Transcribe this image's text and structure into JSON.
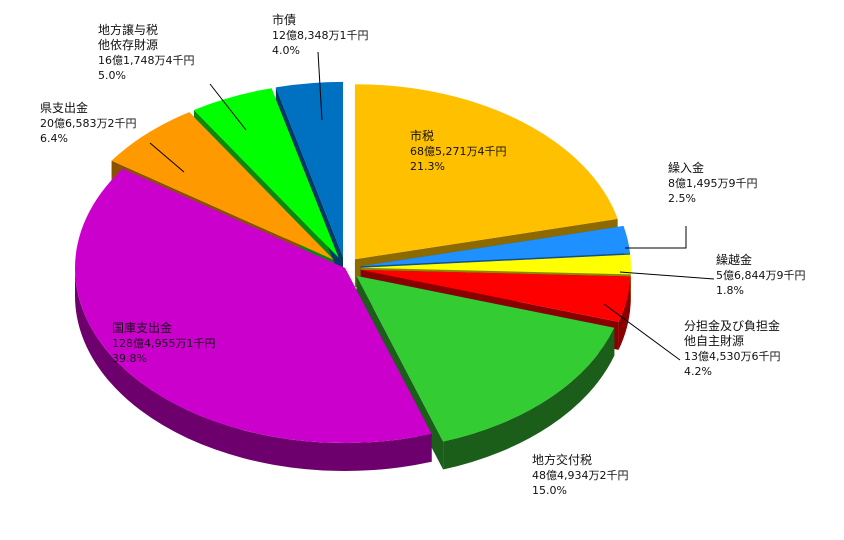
{
  "chart_data": {
    "type": "pie",
    "title": "",
    "legend": "none",
    "slices": [
      {
        "name": "市税",
        "amount": "68億5,271万4千円",
        "percent": "21.3%",
        "value": 21.3,
        "color": "#FFC000",
        "side": "#8C6A00",
        "explode": 1
      },
      {
        "name": "繰入金",
        "amount": "8億1,495万9千円",
        "percent": "2.5%",
        "value": 2.5,
        "color": "#1E90FF",
        "side": "#0E4F8F",
        "explode": 1
      },
      {
        "name": "繰越金",
        "amount": "5億6,844万9千円",
        "percent": "1.8%",
        "value": 1.8,
        "color": "#FFFF00",
        "side": "#8A8A00",
        "explode": 1
      },
      {
        "name": "分担金及び負担金\n他自主財源",
        "amount": "13億4,530万6千円",
        "percent": "4.2%",
        "value": 4.2,
        "color": "#FF0000",
        "side": "#8A0000",
        "explode": 1
      },
      {
        "name": "地方交付税",
        "amount": "48億4,934万2千円",
        "percent": "15.0%",
        "value": 15.0,
        "color": "#33CC33",
        "side": "#1A5E1A",
        "explode": 1
      },
      {
        "name": "国庫支出金",
        "amount": "128億4,955万1千円",
        "percent": "39.8%",
        "value": 39.8,
        "color": "#CC00CC",
        "side": "#6E006E",
        "explode": 0
      },
      {
        "name": "県支出金",
        "amount": "20億6,583万2千円",
        "percent": "6.4%",
        "value": 6.4,
        "color": "#FF9900",
        "side": "#8A5200",
        "explode": 1
      },
      {
        "name": "地方譲与税\n他依存財源",
        "amount": "16億1,748万4千円",
        "percent": "5.0%",
        "value": 5.0,
        "color": "#00FF00",
        "side": "#0A8A0A",
        "explode": 1
      },
      {
        "name": "市債",
        "amount": "12億8,348万1千円",
        "percent": "4.0%",
        "value": 4.0,
        "color": "#0070C0",
        "side": "#003A66",
        "explode": 1
      }
    ]
  }
}
